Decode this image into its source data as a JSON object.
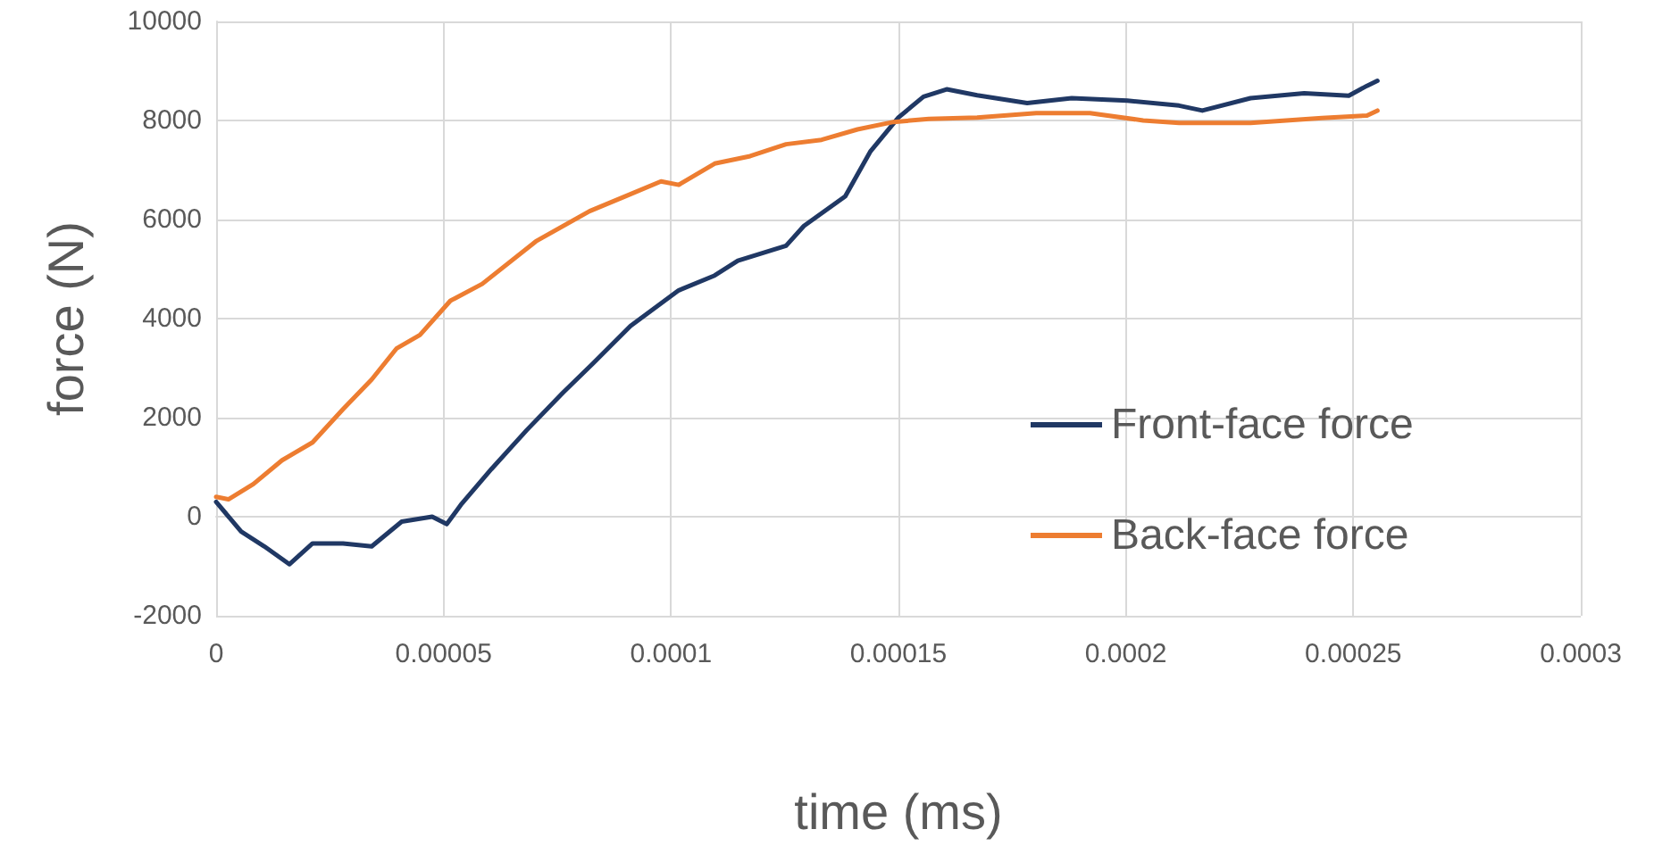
{
  "chart_data": {
    "type": "line",
    "xlabel": "time (ms)",
    "ylabel": "force (N)",
    "xlim": [
      0,
      0.0003
    ],
    "xticks": [
      0,
      {
        "value": 5e-05,
        "label": "0.00005"
      },
      0.0001,
      0.00015,
      0.0002,
      0.00025,
      0.0003
    ],
    "ylim": [
      -2000,
      10000
    ],
    "yticks": [
      -2000,
      0,
      2000,
      4000,
      6000,
      8000,
      10000
    ],
    "grid": true,
    "legend": "right",
    "marker": "none",
    "line_style": "solid",
    "series": [
      {
        "name": "Front-face force",
        "color": "#203864",
        "x": [
          0,
          5.5e-06,
          1.06e-05,
          1.61e-05,
          2.12e-05,
          2.79e-05,
          3.42e-05,
          4.08e-05,
          4.75e-05,
          5.07e-05,
          5.38e-05,
          6.05e-05,
          6.83e-05,
          7.62e-05,
          8.29e-05,
          9.11e-05,
          0.0001017,
          0.0001096,
          0.0001147,
          0.0001253,
          0.0001292,
          0.0001383,
          0.0001438,
          0.00015,
          0.0001555,
          0.0001606,
          0.0001673,
          0.0001783,
          0.0001881,
          0.0002003,
          0.0002117,
          0.0002168,
          0.0002274,
          0.0002392,
          0.000249,
          0.000253,
          0.0002553
        ],
        "values": [
          300,
          -300,
          -600,
          -960,
          -540,
          -540,
          -600,
          -100,
          0,
          -150,
          240,
          960,
          1750,
          2500,
          3100,
          3850,
          4570,
          4870,
          5170,
          5470,
          5870,
          6470,
          7370,
          8060,
          8480,
          8630,
          8510,
          8350,
          8450,
          8400,
          8300,
          8200,
          8450,
          8550,
          8500,
          8700,
          8800
        ]
      },
      {
        "name": "Back-face force",
        "color": "#ed7d31",
        "x": [
          0,
          2.7e-06,
          8.2e-06,
          1.45e-05,
          2.12e-05,
          2.79e-05,
          3.42e-05,
          3.97e-05,
          4.48e-05,
          5.15e-05,
          5.85e-05,
          7.03e-05,
          8.21e-05,
          9e-05,
          9.78e-05,
          0.0001017,
          0.0001096,
          0.0001174,
          0.0001253,
          0.0001331,
          0.000141,
          0.0001489,
          0.0001567,
          0.0001673,
          0.0001803,
          0.0001921,
          0.0002038,
          0.0002117,
          0.0002274,
          0.0002431,
          0.000253,
          0.0002553
        ],
        "values": [
          400,
          350,
          660,
          1140,
          1500,
          2170,
          2770,
          3400,
          3670,
          4360,
          4700,
          5560,
          6170,
          6470,
          6770,
          6700,
          7130,
          7280,
          7520,
          7610,
          7820,
          7970,
          8030,
          8060,
          8150,
          8150,
          8000,
          7950,
          7950,
          8050,
          8100,
          8200
        ]
      }
    ]
  }
}
